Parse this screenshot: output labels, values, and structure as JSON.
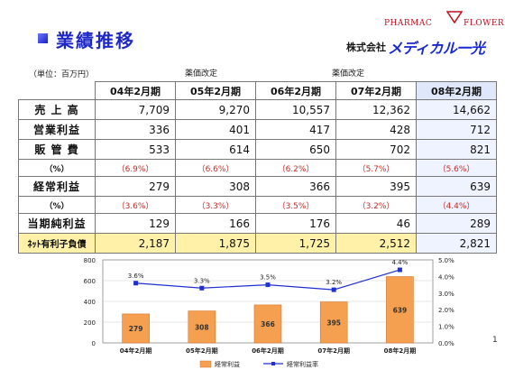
{
  "header": {
    "title": "業績推移",
    "logo_pharmac": "PHARMAC",
    "logo_flower": "FLOWER",
    "company_prefix": "株式会社",
    "company_name": "メディカル一光"
  },
  "table": {
    "unit_label": "（単位：百万円）",
    "notes": [
      {
        "label": "薬価改定",
        "column": 1
      },
      {
        "label": "薬価改定",
        "column": 3
      }
    ],
    "columns": [
      "04年2月期",
      "05年2月期",
      "06年2月期",
      "07年2月期",
      "08年2月期"
    ],
    "rows": [
      {
        "label": "売 上 高",
        "values": [
          "7,709",
          "9,270",
          "10,557",
          "12,362",
          "14,662"
        ]
      },
      {
        "label": "営業利益",
        "values": [
          "336",
          "401",
          "417",
          "428",
          "712"
        ]
      },
      {
        "label": "販 管 費",
        "values": [
          "533",
          "614",
          "650",
          "702",
          "821"
        ]
      },
      {
        "label": "（%）",
        "values": [
          "（6.9%）",
          "（6.6%）",
          "（6.2%）",
          "（5.7%）",
          "（5.6%）"
        ]
      },
      {
        "label": "経常利益",
        "values": [
          "279",
          "308",
          "366",
          "395",
          "639"
        ]
      },
      {
        "label": "（%）",
        "values": [
          "（3.6%）",
          "（3.3%）",
          "（3.5%）",
          "（3.2%）",
          "（4.4%）"
        ]
      },
      {
        "label": "当期純利益",
        "values": [
          "129",
          "166",
          "176",
          "46",
          "289"
        ]
      },
      {
        "label": "ﾈｯﾄ有利子負債",
        "values": [
          "2,187",
          "1,875",
          "1,725",
          "2,512",
          "2,821"
        ]
      }
    ]
  },
  "chart_data": {
    "type": "bar",
    "categories": [
      "04年2月期",
      "05年2月期",
      "06年2月期",
      "07年2月期",
      "08年2月期"
    ],
    "series": [
      {
        "name": "経常利益",
        "type": "bar",
        "values": [
          279,
          308,
          366,
          395,
          639
        ],
        "labels": [
          "279",
          "308",
          "366",
          "395",
          "639"
        ],
        "color": "#f5a050",
        "axis": "left"
      },
      {
        "name": "経常利益率",
        "type": "line",
        "values": [
          3.6,
          3.3,
          3.5,
          3.2,
          4.4
        ],
        "labels": [
          "3.6%",
          "3.3%",
          "3.5%",
          "3.2%",
          "4.4%"
        ],
        "color": "#1f2fd0",
        "axis": "right"
      }
    ],
    "ylim": [
      0,
      800
    ],
    "yticks": [
      "0",
      "200",
      "400",
      "600",
      "800"
    ],
    "y2lim": [
      0,
      5
    ],
    "y2ticks": [
      "0.0%",
      "1.0%",
      "2.0%",
      "3.0%",
      "4.0%",
      "5.0%"
    ],
    "grid": true,
    "legend": "bottom"
  },
  "page_number": "1"
}
